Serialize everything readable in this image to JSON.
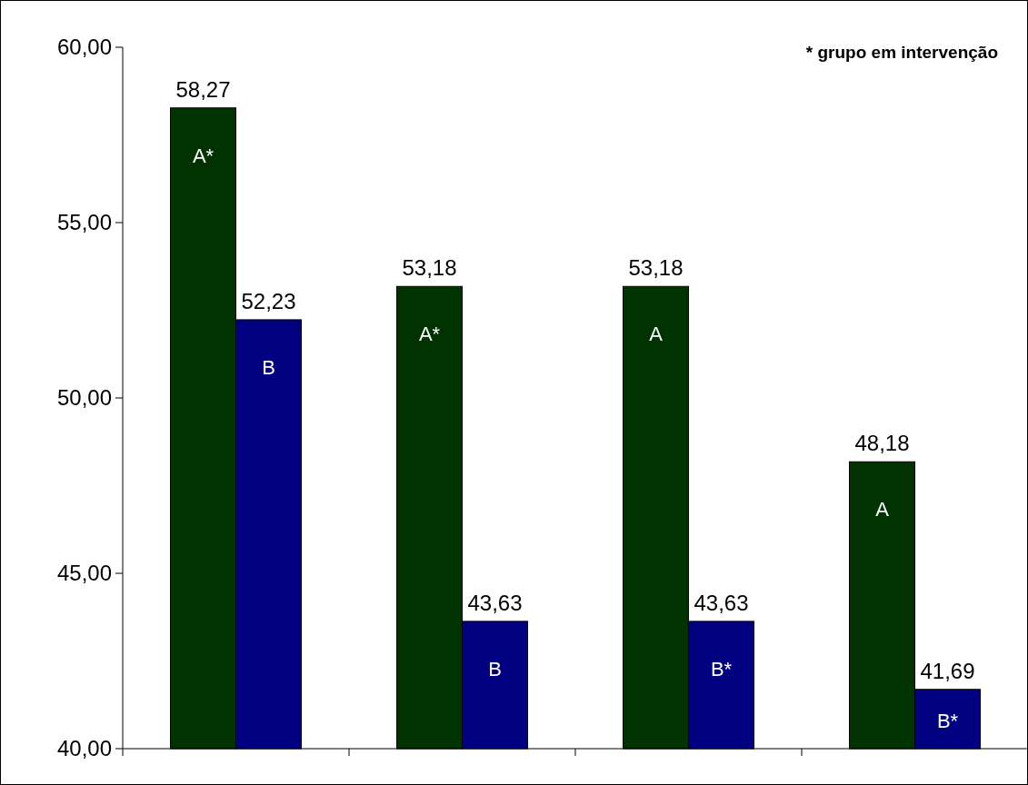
{
  "chart_data": {
    "type": "bar",
    "categories": [
      null,
      null,
      null,
      null
    ],
    "series": [
      {
        "color": "#003300",
        "values": [
          58.27,
          53.18,
          53.18,
          48.18
        ],
        "value_labels": [
          "58,27",
          "53,18",
          "53,18",
          "48,18"
        ]
      },
      {
        "color": "#000080",
        "values": [
          52.23,
          43.63,
          43.63,
          41.69
        ],
        "value_labels": [
          "52,23",
          "43,63",
          "43,63",
          "41,69"
        ]
      }
    ],
    "ylim": [
      40,
      60
    ],
    "yticks": [
      {
        "value": 40,
        "label": "40,00"
      },
      {
        "value": 45,
        "label": "45,00"
      },
      {
        "value": 50,
        "label": "50,00"
      },
      {
        "value": 55,
        "label": "55,00"
      },
      {
        "value": 60,
        "label": "60,00"
      }
    ],
    "annotations": [
      "* grupo em intervenção",
      "A*",
      "B",
      "A*",
      "B",
      "A",
      "B*",
      "A",
      "B*"
    ],
    "grid": false
  }
}
